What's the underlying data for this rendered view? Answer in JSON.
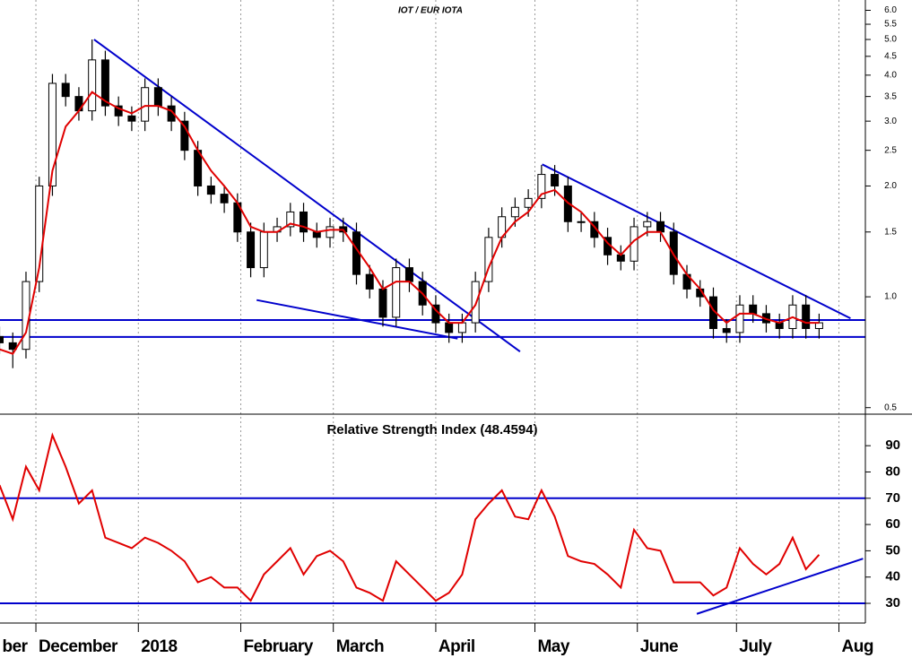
{
  "chart_data": [
    {
      "type": "candlestick",
      "title": "IOT / EUR IOTA",
      "log_scale": true,
      "x": [
        0,
        4,
        8,
        12,
        16,
        20,
        24,
        28,
        32,
        36,
        40,
        44,
        48,
        52,
        56,
        60,
        64,
        68,
        72,
        76,
        80,
        84,
        88,
        92,
        96,
        100,
        104,
        108,
        112,
        116,
        120,
        124,
        128,
        132,
        136,
        140,
        144,
        148,
        152,
        156,
        160,
        164,
        168,
        172,
        176,
        180,
        184,
        188,
        192,
        196,
        200,
        204,
        208,
        212,
        216,
        220,
        224,
        228,
        232,
        236,
        240,
        244,
        248
      ],
      "open": [
        0.78,
        0.75,
        0.72,
        1.1,
        2.0,
        3.8,
        3.5,
        3.2,
        4.4,
        3.3,
        3.1,
        3.0,
        3.7,
        3.3,
        3.0,
        2.5,
        2.0,
        1.9,
        1.8,
        1.5,
        1.2,
        1.5,
        1.55,
        1.7,
        1.5,
        1.45,
        1.55,
        1.5,
        1.15,
        1.05,
        0.88,
        1.2,
        1.1,
        0.95,
        0.85,
        0.8,
        0.85,
        1.1,
        1.45,
        1.65,
        1.75,
        1.85,
        2.15,
        2.0,
        1.6,
        1.6,
        1.45,
        1.3,
        1.25,
        1.55,
        1.6,
        1.5,
        1.15,
        1.05,
        1.0,
        0.82,
        0.8,
        0.95,
        0.9,
        0.85,
        0.82,
        0.95,
        0.82
      ],
      "high": [
        0.83,
        0.8,
        1.17,
        2.12,
        4.03,
        4.03,
        3.71,
        5.0,
        4.66,
        3.5,
        3.29,
        3.92,
        3.92,
        3.5,
        3.18,
        2.65,
        2.12,
        2.01,
        1.91,
        1.59,
        1.59,
        1.64,
        1.8,
        1.8,
        1.59,
        1.64,
        1.64,
        1.59,
        1.22,
        1.11,
        1.27,
        1.27,
        1.17,
        1.01,
        0.9,
        0.9,
        1.17,
        1.54,
        1.75,
        1.86,
        1.96,
        2.28,
        2.28,
        2.12,
        1.7,
        1.7,
        1.54,
        1.38,
        1.64,
        1.7,
        1.7,
        1.59,
        1.22,
        1.11,
        1.06,
        0.87,
        1.01,
        1.01,
        0.95,
        0.9,
        1.01,
        1.01,
        0.9
      ],
      "low": [
        0.7,
        0.64,
        0.68,
        1.03,
        1.88,
        3.29,
        3.01,
        3.01,
        3.1,
        2.91,
        2.82,
        2.82,
        3.1,
        2.82,
        2.35,
        1.88,
        1.79,
        1.69,
        1.41,
        1.13,
        1.13,
        1.41,
        1.46,
        1.41,
        1.36,
        1.36,
        1.41,
        1.08,
        0.99,
        0.83,
        0.83,
        1.03,
        0.89,
        0.8,
        0.75,
        0.75,
        0.8,
        1.03,
        1.36,
        1.55,
        1.65,
        1.74,
        1.88,
        1.5,
        1.5,
        1.36,
        1.22,
        1.18,
        1.18,
        1.46,
        1.41,
        1.08,
        0.99,
        0.94,
        0.77,
        0.75,
        0.75,
        0.85,
        0.8,
        0.77,
        0.77,
        0.77,
        0.77
      ],
      "close": [
        0.75,
        0.72,
        1.1,
        2.0,
        3.8,
        3.5,
        3.2,
        4.4,
        3.3,
        3.1,
        3.0,
        3.7,
        3.3,
        3.0,
        2.5,
        2.0,
        1.9,
        1.8,
        1.5,
        1.2,
        1.5,
        1.55,
        1.7,
        1.5,
        1.45,
        1.55,
        1.5,
        1.15,
        1.05,
        0.88,
        1.2,
        1.1,
        0.95,
        0.85,
        0.8,
        0.85,
        1.1,
        1.45,
        1.65,
        1.75,
        1.85,
        2.15,
        2.0,
        1.6,
        1.6,
        1.45,
        1.3,
        1.25,
        1.55,
        1.6,
        1.5,
        1.15,
        1.05,
        1.0,
        0.82,
        0.8,
        0.95,
        0.9,
        0.85,
        0.82,
        0.95,
        0.82,
        0.85
      ],
      "series": [
        {
          "color": "#e00000",
          "values": [
            0.72,
            0.7,
            0.8,
            1.2,
            2.2,
            2.9,
            3.2,
            3.6,
            3.4,
            3.25,
            3.15,
            3.3,
            3.3,
            3.2,
            2.9,
            2.5,
            2.2,
            2.0,
            1.8,
            1.55,
            1.5,
            1.5,
            1.58,
            1.55,
            1.5,
            1.52,
            1.52,
            1.35,
            1.2,
            1.05,
            1.1,
            1.1,
            1.02,
            0.92,
            0.85,
            0.85,
            0.95,
            1.2,
            1.45,
            1.6,
            1.7,
            1.9,
            1.95,
            1.8,
            1.7,
            1.55,
            1.4,
            1.3,
            1.42,
            1.5,
            1.5,
            1.3,
            1.15,
            1.05,
            0.92,
            0.85,
            0.9,
            0.9,
            0.87,
            0.85,
            0.88,
            0.85,
            0.85
          ]
        }
      ],
      "lines_color": "#0000cc",
      "lines": [
        {
          "x": [
            28.6,
            157.5
          ],
          "y": [
            5.0,
            0.71
          ]
        },
        {
          "x": [
            77.8,
            138.6
          ],
          "y": [
            0.98,
            0.77
          ]
        },
        {
          "x": [
            164.2,
            257.5
          ],
          "y": [
            2.29,
            0.874
          ]
        },
        {
          "x": [
            0,
            262
          ],
          "y": [
            0.865,
            0.865
          ]
        },
        {
          "x": [
            0,
            262
          ],
          "y": [
            0.778,
            0.778
          ]
        }
      ],
      "xlim": [
        0,
        262
      ],
      "ylim": [
        0.48,
        6.4
      ],
      "yticks": [
        {
          "value": 6,
          "label": "6.0"
        },
        {
          "value": 5.5,
          "label": "5.5"
        },
        {
          "value": 5,
          "label": "5.0"
        },
        {
          "value": 4.5,
          "label": "4.5"
        },
        {
          "value": 4,
          "label": "4.0"
        },
        {
          "value": 3.5,
          "label": "3.5"
        },
        {
          "value": 3,
          "label": "3.0"
        },
        {
          "value": 2.5,
          "label": "2.5"
        },
        {
          "value": 2,
          "label": "2.0"
        },
        {
          "value": 1.5,
          "label": "1.5"
        },
        {
          "value": 1,
          "label": "1.0"
        },
        {
          "value": 0.5,
          "label": "0.5"
        }
      ]
    },
    {
      "type": "line",
      "title": "Relative Strength Index (48.4594)",
      "x": [
        0,
        4,
        8,
        12,
        16,
        20,
        24,
        28,
        32,
        36,
        40,
        44,
        48,
        52,
        56,
        60,
        64,
        68,
        72,
        76,
        80,
        84,
        88,
        92,
        96,
        100,
        104,
        108,
        112,
        116,
        120,
        124,
        128,
        132,
        136,
        140,
        144,
        148,
        152,
        156,
        160,
        164,
        168,
        172,
        176,
        180,
        184,
        188,
        192,
        196,
        200,
        204,
        208,
        212,
        216,
        220,
        224,
        228,
        232,
        236,
        240,
        244,
        248
      ],
      "series": [
        {
          "color": "#e00000",
          "values": [
            75,
            62,
            82,
            73,
            94,
            82,
            68,
            73,
            55,
            53,
            51,
            55,
            53,
            50,
            46,
            38,
            40,
            36,
            36,
            31,
            41,
            46,
            51,
            41,
            48,
            50,
            46,
            36,
            34,
            31,
            46,
            41,
            36,
            31,
            34,
            41,
            62,
            68,
            73,
            63,
            62,
            73,
            63,
            48,
            46,
            45,
            41,
            36,
            58,
            51,
            50,
            38,
            38,
            38,
            33,
            36,
            51,
            45,
            41,
            45,
            55,
            43,
            48.5
          ]
        }
      ],
      "lines_color": "#0000cc",
      "lines": [
        {
          "x": [
            0,
            262
          ],
          "y": [
            70,
            70
          ]
        },
        {
          "x": [
            0,
            262
          ],
          "y": [
            30,
            30
          ]
        },
        {
          "x": [
            211,
            261.3
          ],
          "y": [
            26,
            47
          ]
        }
      ],
      "xlim": [
        0,
        262
      ],
      "ylim": [
        22.5,
        102
      ],
      "yticks": [
        30,
        40,
        50,
        60,
        70,
        80,
        90
      ],
      "xticks": [
        {
          "value": 0,
          "label": "ber"
        },
        {
          "value": 11,
          "label": "December"
        },
        {
          "value": 42,
          "label": "2018"
        },
        {
          "value": 73,
          "label": "February"
        },
        {
          "value": 101,
          "label": "March"
        },
        {
          "value": 132,
          "label": "April"
        },
        {
          "value": 162,
          "label": "May"
        },
        {
          "value": 193,
          "label": "June"
        },
        {
          "value": 223,
          "label": "July"
        },
        {
          "value": 254,
          "label": "Aug"
        }
      ]
    }
  ]
}
